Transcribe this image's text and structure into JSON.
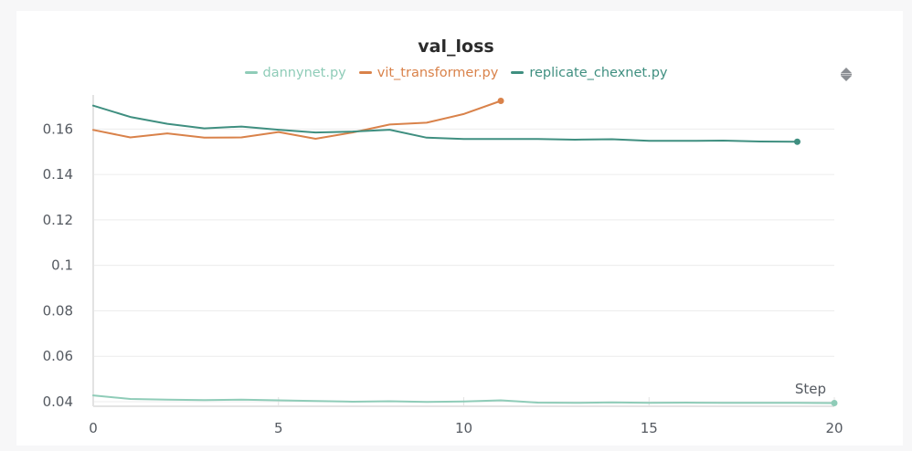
{
  "chart_data": {
    "type": "line",
    "title": "val_loss",
    "xlabel": "Step",
    "ylabel": "",
    "xlim": [
      0,
      20
    ],
    "ylim": [
      0.038,
      0.175
    ],
    "xticks": [
      0,
      5,
      10,
      15,
      20
    ],
    "yticks": [
      0.04,
      0.06,
      0.08,
      0.1,
      0.12,
      0.14,
      0.16
    ],
    "ytick_labels": [
      "0.04",
      "0.06",
      "0.08",
      "0.1",
      "0.12",
      "0.14",
      "0.16"
    ],
    "grid": true,
    "legend_position": "top-center",
    "series": [
      {
        "name": "dannynet.py",
        "color": "#8fccb8",
        "x": [
          0,
          1,
          2,
          3,
          4,
          5,
          6,
          7,
          8,
          9,
          10,
          11,
          12,
          13,
          14,
          15,
          16,
          17,
          18,
          19,
          20
        ],
        "y": [
          0.0428,
          0.0412,
          0.0409,
          0.0407,
          0.0409,
          0.0406,
          0.0403,
          0.04,
          0.0402,
          0.0399,
          0.0401,
          0.0406,
          0.0396,
          0.0395,
          0.0397,
          0.0395,
          0.0396,
          0.0395,
          0.0395,
          0.0395,
          0.0394
        ]
      },
      {
        "name": "vit_transformer.py",
        "color": "#d9824a",
        "x": [
          0,
          1,
          2,
          3,
          4,
          5,
          6,
          7,
          8,
          9,
          10,
          11
        ],
        "y": [
          0.1596,
          0.1563,
          0.1581,
          0.1562,
          0.1563,
          0.1587,
          0.1557,
          0.1585,
          0.162,
          0.1628,
          0.1666,
          0.1724
        ]
      },
      {
        "name": "replicate_chexnet.py",
        "color": "#3f8f80",
        "x": [
          0,
          1,
          2,
          3,
          4,
          5,
          6,
          7,
          8,
          9,
          10,
          11,
          12,
          13,
          14,
          15,
          16,
          17,
          18,
          19
        ],
        "y": [
          0.1703,
          0.1653,
          0.1623,
          0.1603,
          0.1611,
          0.1597,
          0.1585,
          0.1589,
          0.1597,
          0.1562,
          0.1556,
          0.1556,
          0.1556,
          0.1553,
          0.1555,
          0.1548,
          0.1548,
          0.1549,
          0.1545,
          0.1544
        ]
      }
    ]
  },
  "ui": {
    "menu_icon": "sort-handle-icon",
    "colors": {
      "grid": "#ececec",
      "axis": "#e3e3e3",
      "text": "#555a61"
    }
  }
}
